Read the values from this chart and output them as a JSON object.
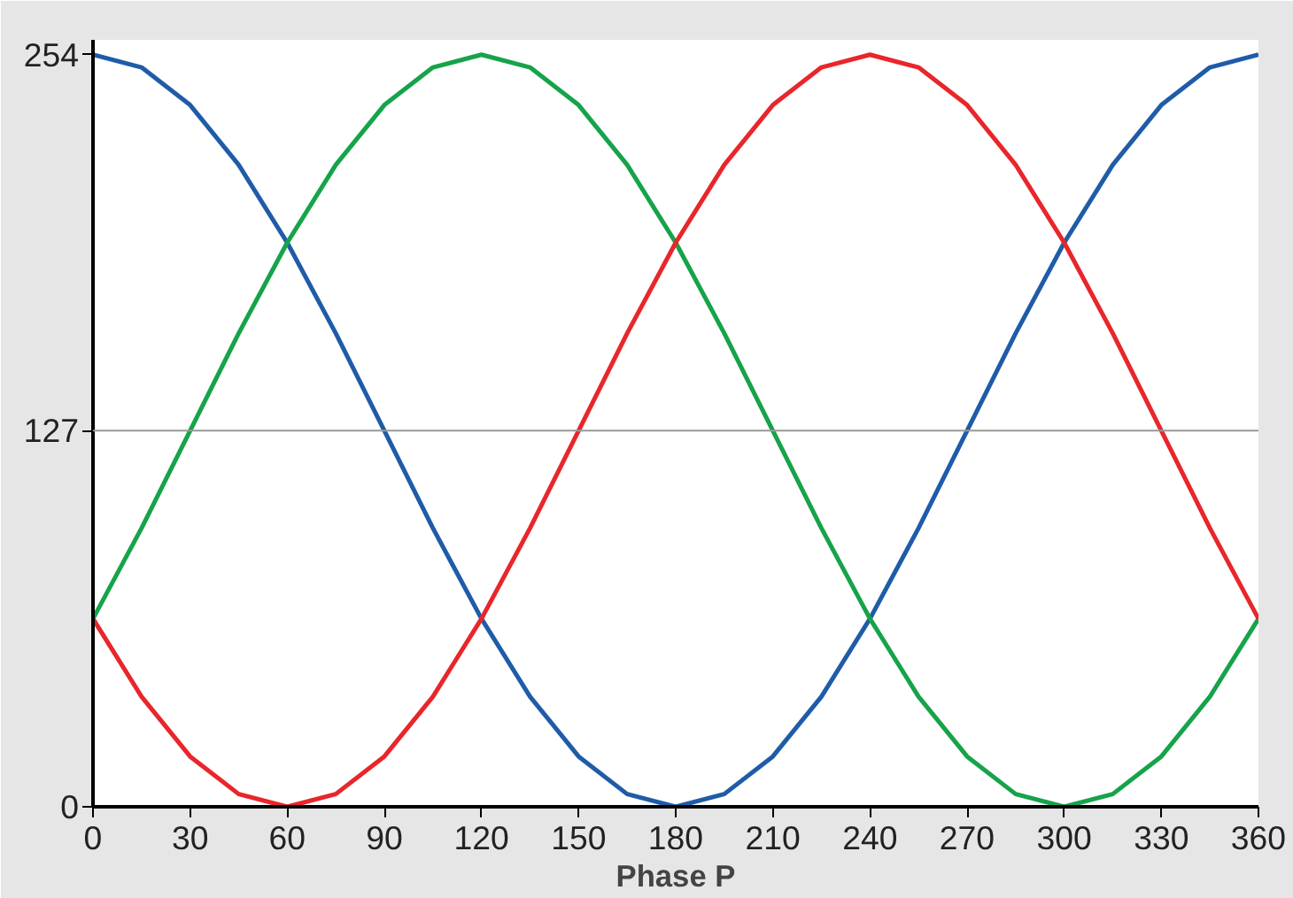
{
  "chart_data": {
    "type": "line",
    "xlabel": "Phase P",
    "x": [
      0,
      15,
      30,
      45,
      60,
      75,
      90,
      105,
      120,
      135,
      150,
      165,
      180,
      195,
      210,
      225,
      240,
      255,
      270,
      285,
      300,
      315,
      330,
      345,
      360
    ],
    "series": [
      {
        "color": "#1f5ca8",
        "values": [
          254,
          249.7,
          237,
          216.8,
          190.5,
          159.9,
          127,
          94.1,
          63.5,
          37.2,
          17,
          4.3,
          0,
          4.3,
          17,
          37.2,
          63.5,
          94.1,
          127,
          159.9,
          190.5,
          216.8,
          237,
          249.7,
          254
        ]
      },
      {
        "color": "#16a34a",
        "values": [
          63.5,
          94.1,
          127,
          159.9,
          190.5,
          216.8,
          237,
          249.7,
          254,
          249.7,
          237,
          216.8,
          190.5,
          159.9,
          127,
          94.1,
          63.5,
          37.2,
          17,
          4.3,
          0,
          4.3,
          17,
          37.2,
          63.5
        ]
      },
      {
        "color": "#e8262b",
        "values": [
          63.5,
          37.2,
          17,
          4.3,
          0,
          4.3,
          17,
          37.2,
          63.5,
          94.1,
          127,
          159.9,
          190.5,
          216.8,
          237,
          249.7,
          254,
          249.7,
          237,
          216.8,
          190.5,
          159.9,
          127,
          94.1,
          63.5
        ]
      }
    ],
    "xlim": [
      0,
      360
    ],
    "ylim": [
      0,
      259
    ],
    "xticks": [
      0,
      30,
      60,
      90,
      120,
      150,
      180,
      210,
      240,
      270,
      300,
      330,
      360
    ],
    "yticks": [
      0,
      127,
      254
    ],
    "ref_lines": [
      {
        "axis": "y",
        "value": 127,
        "color": "#999999"
      }
    ],
    "grid": false,
    "marker": "none",
    "line_style": "solid"
  }
}
